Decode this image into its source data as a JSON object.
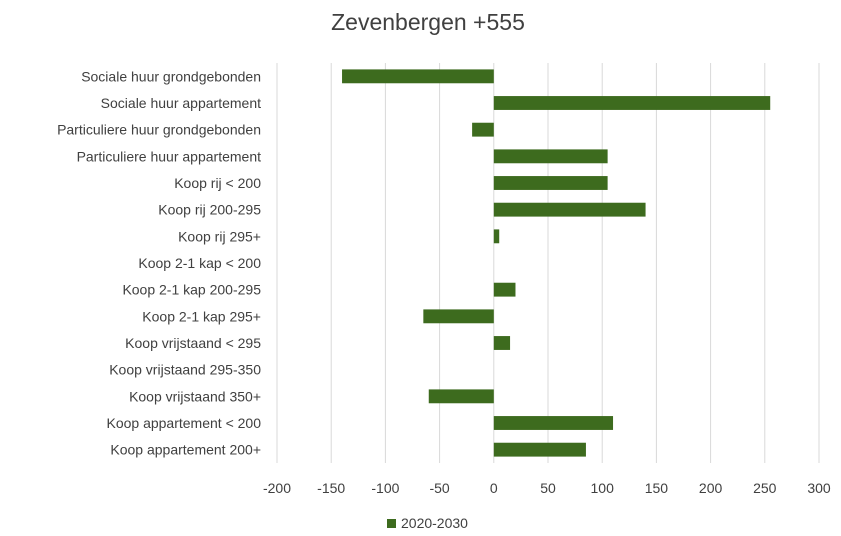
{
  "chart_data": {
    "type": "bar",
    "orientation": "horizontal",
    "title": "Zevenbergen +555",
    "xlabel": "",
    "ylabel": "",
    "xlim": [
      -200,
      300
    ],
    "x_ticks": [
      -200,
      -150,
      -100,
      -50,
      0,
      50,
      100,
      150,
      200,
      250,
      300
    ],
    "grid": "vertical",
    "legend_position": "bottom",
    "categories": [
      "Sociale huur grondgebonden",
      "Sociale huur appartement",
      "Particuliere huur grondgebonden",
      "Particuliere huur appartement",
      "Koop rij < 200",
      "Koop rij 200-295",
      "Koop rij 295+",
      "Koop 2-1 kap < 200",
      "Koop 2-1 kap 200-295",
      "Koop 2-1 kap 295+",
      "Koop vrijstaand < 295",
      "Koop vrijstaand 295-350",
      "Koop vrijstaand 350+",
      "Koop appartement < 200",
      "Koop appartement 200+"
    ],
    "series": [
      {
        "name": "2020-2030",
        "color": "#3d6b1e",
        "values": [
          -140,
          255,
          -20,
          105,
          105,
          140,
          5,
          0,
          20,
          -65,
          15,
          0,
          -60,
          110,
          85
        ]
      }
    ]
  }
}
